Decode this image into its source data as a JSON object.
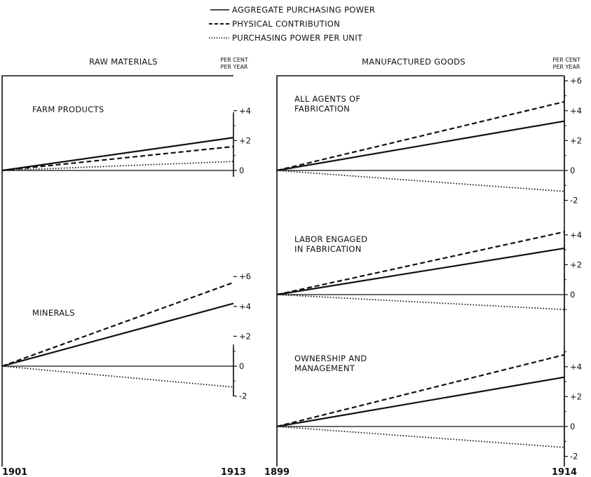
{
  "legend": {
    "aggregate": "AGGREGATE PURCHASING POWER",
    "physical": "PHYSICAL CONTRIBUTION",
    "per_unit": "PURCHASING POWER PER UNIT"
  },
  "panels": {
    "left": {
      "title": "RAW MATERIALS",
      "unit_line1": "PER CENT",
      "unit_line2": "PER YEAR",
      "year_start": "1901",
      "year_end": "1913"
    },
    "right": {
      "title": "MANUFACTURED GOODS",
      "unit_line1": "PER CENT",
      "unit_line2": "PER YEAR",
      "year_start": "1899",
      "year_end": "1914"
    }
  },
  "chart_data": [
    {
      "type": "line",
      "title": "FARM PRODUCTS",
      "x": [
        "1901",
        "1913"
      ],
      "y_ticks": [
        "+4",
        "+2",
        "0"
      ],
      "ylim": [
        0,
        4
      ],
      "series": [
        {
          "name": "AGGREGATE PURCHASING POWER",
          "style": "solid",
          "values": [
            0,
            2.2
          ]
        },
        {
          "name": "PHYSICAL CONTRIBUTION",
          "style": "dashed",
          "values": [
            0,
            1.6
          ]
        },
        {
          "name": "PURCHASING POWER PER UNIT",
          "style": "dotted",
          "values": [
            0,
            0.6
          ]
        }
      ]
    },
    {
      "type": "line",
      "title": "MINERALS",
      "x": [
        "1901",
        "1913"
      ],
      "y_ticks": [
        "+6",
        "+4",
        "+2",
        "0",
        "-2"
      ],
      "ylim": [
        -2,
        6
      ],
      "series": [
        {
          "name": "AGGREGATE PURCHASING POWER",
          "style": "solid",
          "values": [
            0,
            4.2
          ]
        },
        {
          "name": "PHYSICAL CONTRIBUTION",
          "style": "dashed",
          "values": [
            0,
            5.6
          ]
        },
        {
          "name": "PURCHASING POWER PER UNIT",
          "style": "dotted",
          "values": [
            0,
            -1.4
          ]
        }
      ]
    },
    {
      "type": "line",
      "title": "ALL AGENTS OF FABRICATION",
      "x": [
        "1899",
        "1914"
      ],
      "y_ticks": [
        "+6",
        "+4",
        "+2",
        "0",
        "-2"
      ],
      "ylim": [
        -2,
        6
      ],
      "series": [
        {
          "name": "AGGREGATE PURCHASING POWER",
          "style": "solid",
          "values": [
            0,
            3.3
          ]
        },
        {
          "name": "PHYSICAL CONTRIBUTION",
          "style": "dashed",
          "values": [
            0,
            4.6
          ]
        },
        {
          "name": "PURCHASING POWER PER UNIT",
          "style": "dotted",
          "values": [
            0,
            -1.4
          ]
        }
      ]
    },
    {
      "type": "line",
      "title": "LABOR ENGAGED IN FABRICATION",
      "x": [
        "1899",
        "1914"
      ],
      "y_ticks": [
        "+4",
        "+2",
        "0"
      ],
      "ylim": [
        -1,
        4
      ],
      "series": [
        {
          "name": "AGGREGATE PURCHASING POWER",
          "style": "solid",
          "values": [
            0,
            3.1
          ]
        },
        {
          "name": "PHYSICAL CONTRIBUTION",
          "style": "dashed",
          "values": [
            0,
            4.2
          ]
        },
        {
          "name": "PURCHASING POWER PER UNIT",
          "style": "dotted",
          "values": [
            0,
            -1.0
          ]
        }
      ]
    },
    {
      "type": "line",
      "title": "OWNERSHIP AND MANAGEMENT",
      "x": [
        "1899",
        "1914"
      ],
      "y_ticks": [
        "+4",
        "+2",
        "0",
        "-2"
      ],
      "ylim": [
        -2,
        5
      ],
      "series": [
        {
          "name": "AGGREGATE PURCHASING POWER",
          "style": "solid",
          "values": [
            0,
            3.3
          ]
        },
        {
          "name": "PHYSICAL CONTRIBUTION",
          "style": "dashed",
          "values": [
            0,
            4.8
          ]
        },
        {
          "name": "PURCHASING POWER PER UNIT",
          "style": "dotted",
          "values": [
            0,
            -1.4
          ]
        }
      ]
    }
  ]
}
